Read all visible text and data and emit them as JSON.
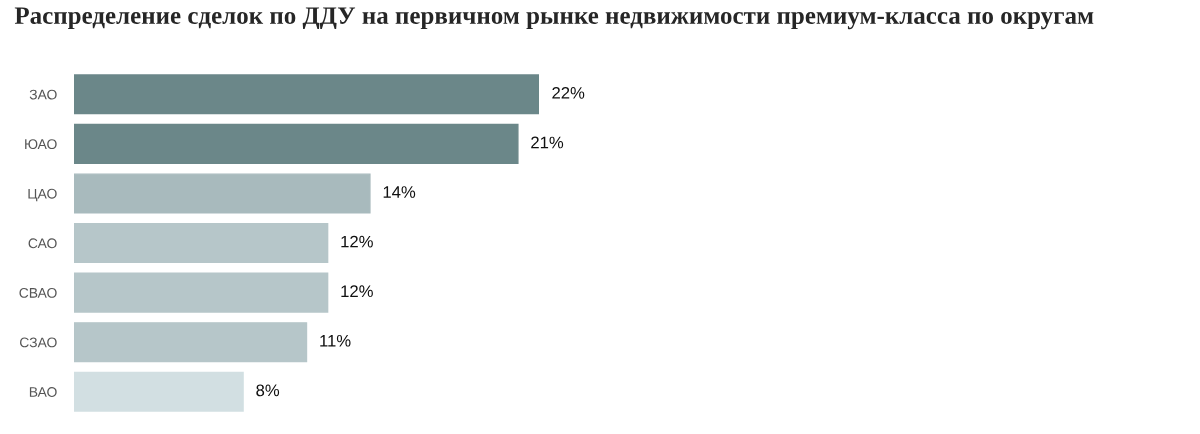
{
  "chart_data": {
    "type": "bar",
    "orientation": "horizontal",
    "title": "Распределение сделок по ДДУ на первичном рынке недвижимости премиум-класса по округам",
    "categories": [
      "ЗАО",
      "ЮАО",
      "ЦАО",
      "САО",
      "СВАО",
      "СЗАО",
      "ВАО"
    ],
    "values": [
      22,
      21,
      14,
      12,
      12,
      11,
      8
    ],
    "colors": [
      "#6b8789",
      "#6b8789",
      "#a8babd",
      "#b6c6c9",
      "#b6c6c9",
      "#b6c6c9",
      "#d2dfe2"
    ],
    "value_labels": [
      "22%",
      "21%",
      "14%",
      "12%",
      "12%",
      "11%",
      "8%"
    ],
    "grid": false,
    "legend": false
  }
}
